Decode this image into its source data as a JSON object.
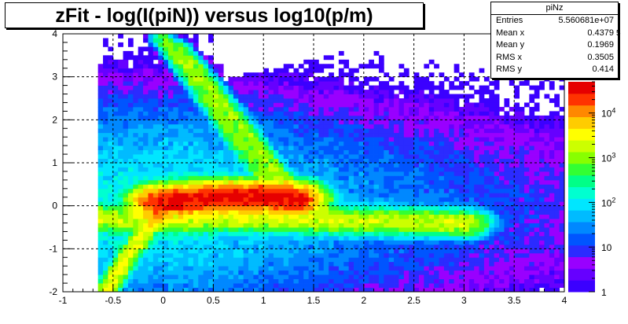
{
  "window": {
    "title": "zFit - log(I(piN)) versus log10(p/m)"
  },
  "stats": {
    "name": "piNz",
    "rows": [
      {
        "label": "Entries",
        "value": "5.560681e+07"
      },
      {
        "label": "Mean x",
        "value": "0.4379"
      },
      {
        "label": "Mean y",
        "value": "0.1969"
      },
      {
        "label": "RMS x",
        "value": "0.3505"
      },
      {
        "label": "RMS y",
        "value": "0.414"
      }
    ]
  },
  "corner_digit": "5",
  "colors": {
    "grid": "#000000",
    "frame": "#000000",
    "background": "#ffffff"
  },
  "chart_data": {
    "type": "heatmap",
    "title": "zFit - log(I(piN)) versus log10(p/m)",
    "xlabel": "",
    "ylabel": "",
    "xlim": [
      -1,
      4
    ],
    "ylim": [
      -2,
      4
    ],
    "x_ticks": [
      "-1",
      "-0.5",
      "0",
      "0.5",
      "1",
      "1.5",
      "2",
      "2.5",
      "3",
      "3.5",
      "4"
    ],
    "y_ticks": [
      "-2",
      "-1",
      "0",
      "1",
      "2",
      "3",
      "4"
    ],
    "grid": true,
    "log_z": true,
    "zlim": [
      1,
      50000
    ],
    "z_ticks": [
      {
        "value": 1,
        "label": "1"
      },
      {
        "value": 10,
        "label": "10"
      },
      {
        "value": 100,
        "label": "10",
        "sup": "2"
      },
      {
        "value": 1000,
        "label": "10",
        "sup": "3"
      },
      {
        "value": 10000,
        "label": "10",
        "sup": "4"
      }
    ],
    "palette": [
      "#3b00ff",
      "#6600ff",
      "#9900ff",
      "#2b2bff",
      "#0055ff",
      "#0088ff",
      "#00bbff",
      "#00e6ff",
      "#00ffd0",
      "#00ff88",
      "#33ff33",
      "#88ff00",
      "#ccff00",
      "#ffff00",
      "#ffcc00",
      "#ff8800",
      "#ff3300",
      "#e60000"
    ],
    "features": [
      {
        "name": "main band",
        "x": [
          0.0,
          0.5,
          1.0,
          1.3
        ],
        "y": [
          0.1,
          0.2,
          0.2,
          0.15
        ],
        "peak": 40000
      },
      {
        "name": "lower rising band",
        "x": [
          -0.55,
          -0.3,
          0.0,
          0.2
        ],
        "y": [
          -1.9,
          -1.0,
          -0.1,
          0.05
        ],
        "peak": 3000
      },
      {
        "name": "horizontal band",
        "x": [
          -0.6,
          0.0,
          1.0,
          2.0,
          3.0
        ],
        "y": [
          -0.3,
          -0.3,
          -0.3,
          -0.35,
          -0.4
        ],
        "peak": 2000
      },
      {
        "name": "upper band 1",
        "x": [
          0.0,
          0.4,
          0.8,
          1.1
        ],
        "y": [
          3.9,
          2.6,
          1.3,
          0.4
        ],
        "peak": 800
      },
      {
        "name": "upper band 2",
        "x": [
          0.15,
          0.6,
          1.1,
          1.3
        ],
        "y": [
          3.7,
          2.3,
          0.9,
          0.3
        ],
        "peak": 800
      },
      {
        "name": "upper band 3",
        "x": [
          0.3,
          0.8,
          1.2,
          1.4
        ],
        "y": [
          3.3,
          1.9,
          0.6,
          0.2
        ],
        "peak": 500
      }
    ]
  }
}
